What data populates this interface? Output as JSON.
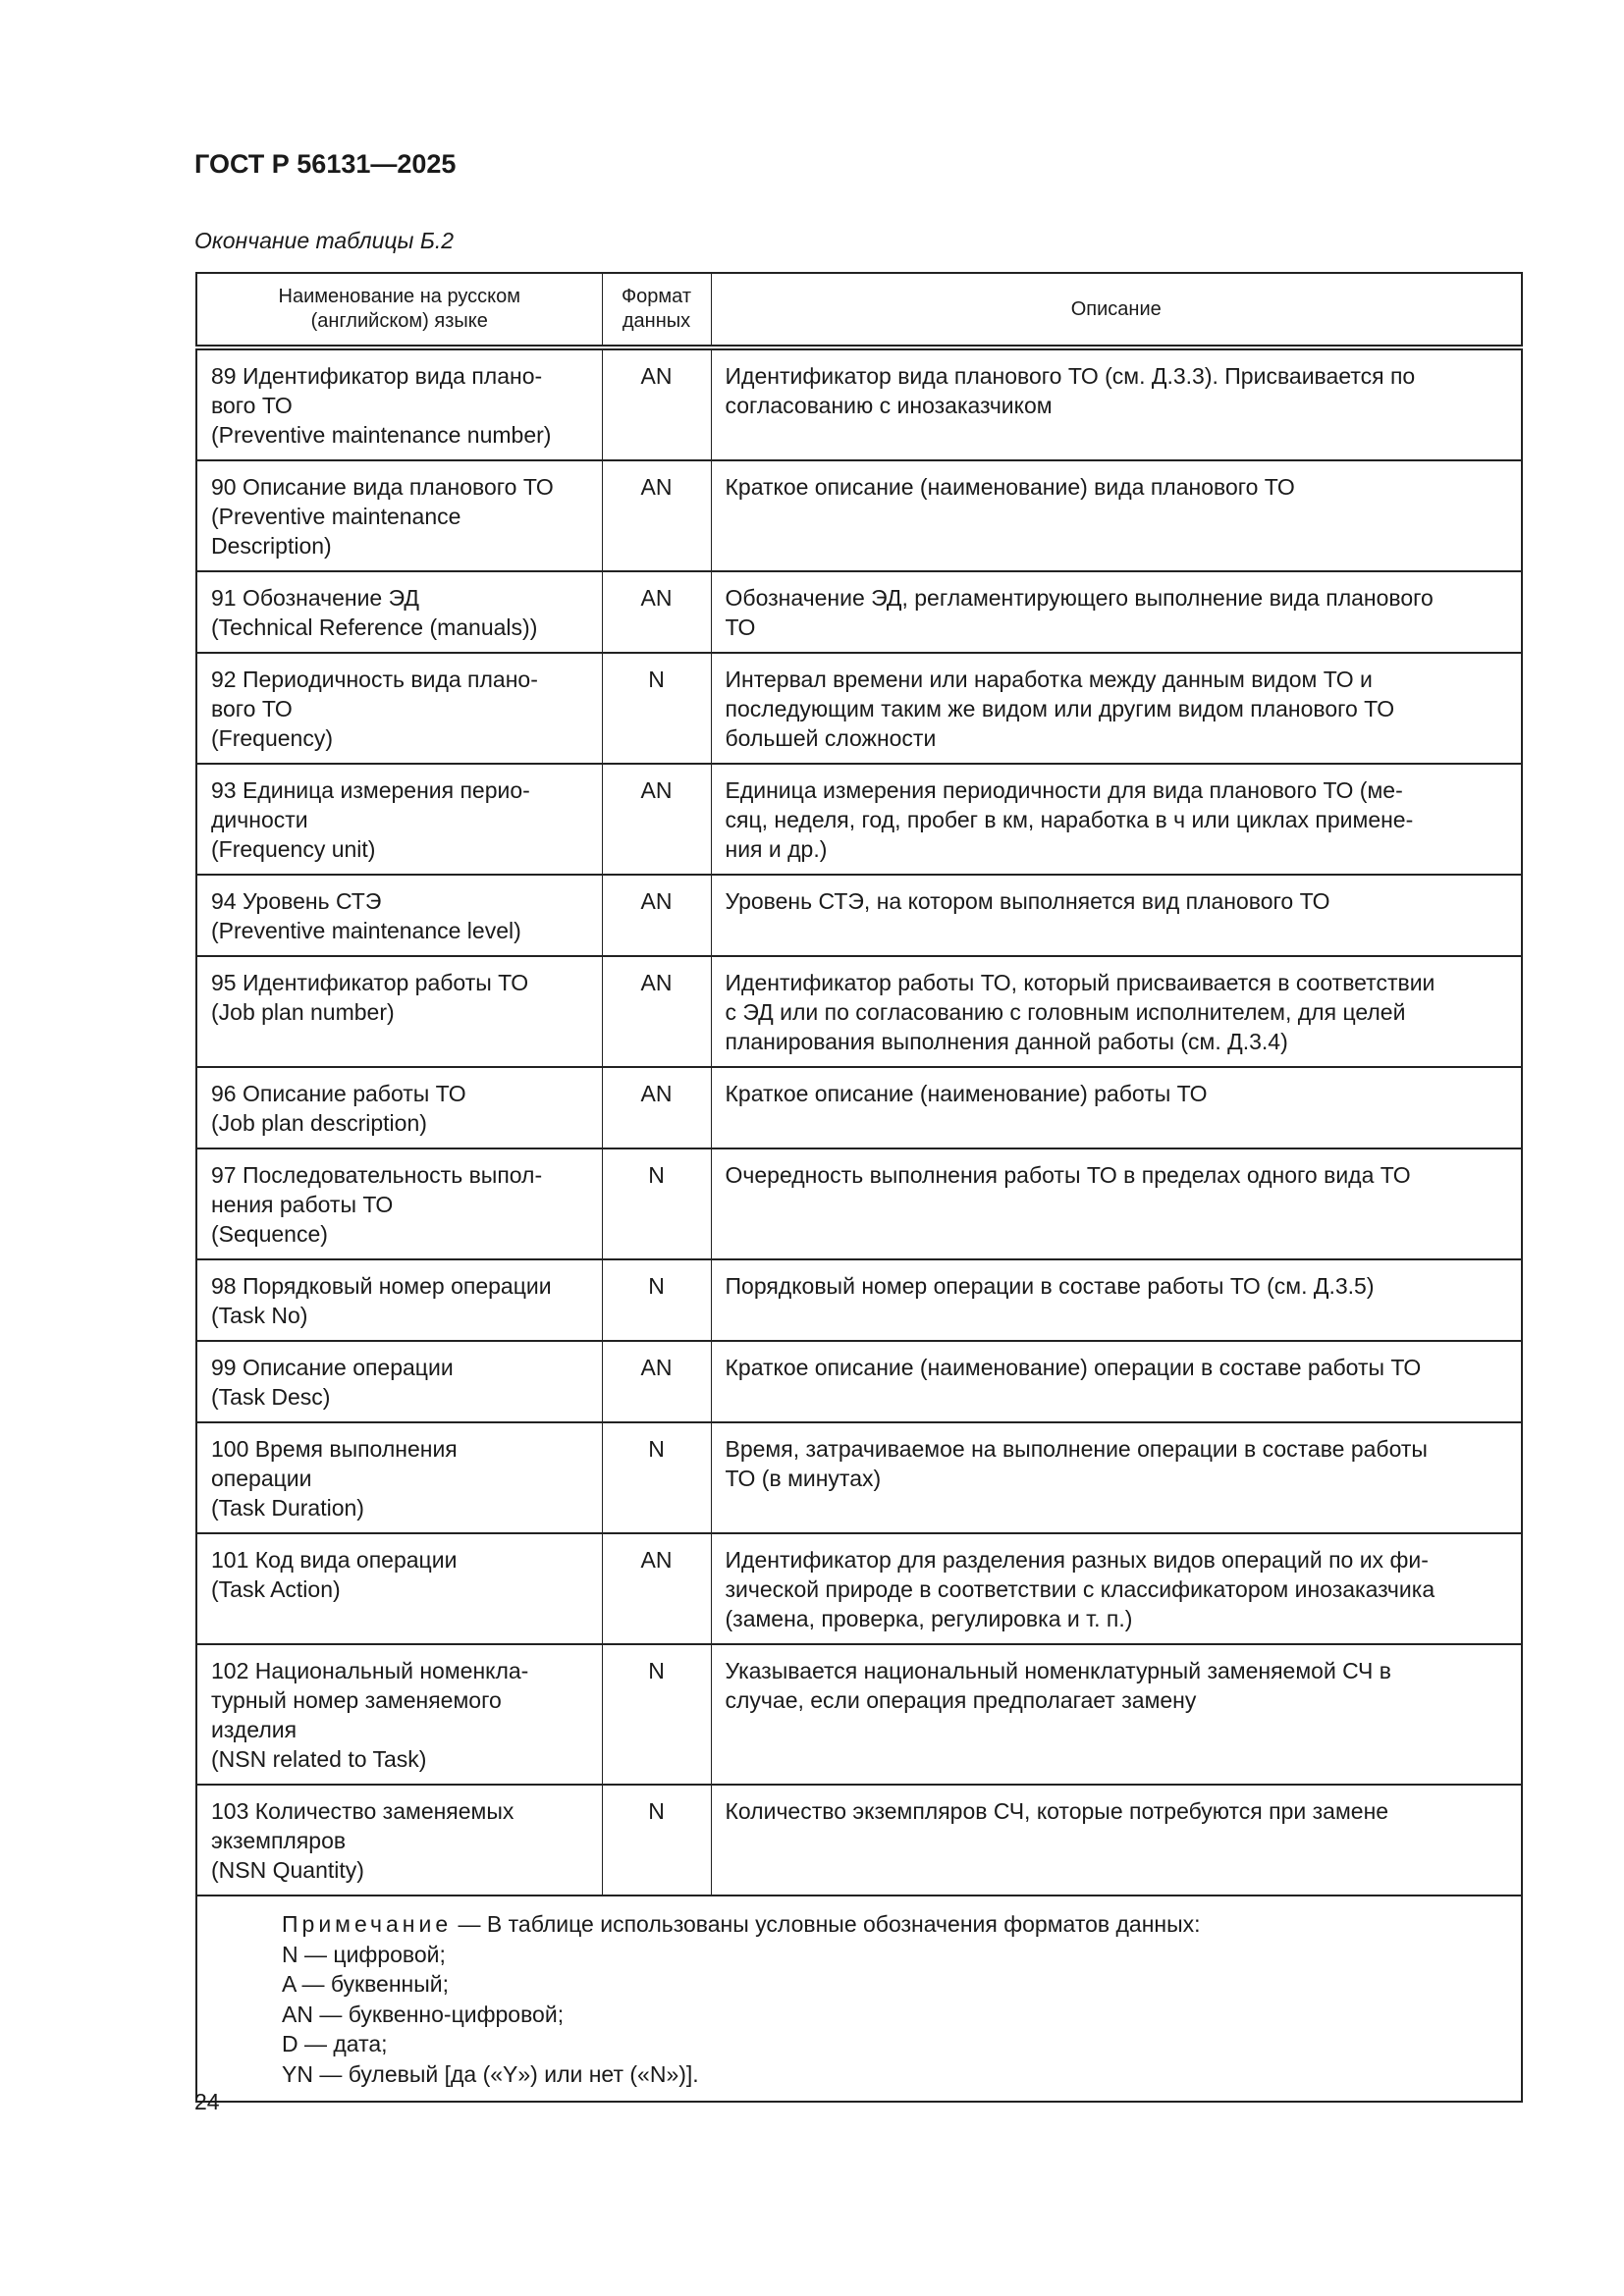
{
  "header": {
    "doc_id": "ГОСТ Р 56131—2025"
  },
  "table_caption": "Окончание таблицы Б.2",
  "columns": [
    "Наименование на русском\n(английском) языке",
    "Формат\nданных",
    "Описание"
  ],
  "rows": [
    {
      "name": "89 Идентификатор вида плано-\nвого ТО\n(Preventive maintenance number)",
      "format": "AN",
      "desc": "Идентификатор вида планового ТО (см. Д.3.3). Присваивается по\nсогласованию с инозаказчиком"
    },
    {
      "name": "90 Описание вида планового ТО\n(Preventive maintenance\nDescription)",
      "format": "AN",
      "desc": "Краткое описание (наименование) вида планового ТО"
    },
    {
      "name": "91 Обозначение ЭД\n(Technical Reference (manuals))",
      "format": "AN",
      "desc": "Обозначение ЭД, регламентирующего выполнение вида планового\nТО"
    },
    {
      "name": "92 Периодичность вида плано-\nвого ТО\n(Frequency)",
      "format": "N",
      "desc": "Интервал времени или наработка между данным видом ТО и\nпоследующим таким же видом или другим видом планового ТО\nбольшей сложности"
    },
    {
      "name": "93 Единица измерения перио-\nдичности\n(Frequency unit)",
      "format": "AN",
      "desc": "Единица измерения периодичности для вида планового ТО (ме-\nсяц, неделя, год, пробег в км, наработка в ч или циклах примене-\nния и др.)"
    },
    {
      "name": "94 Уровень СТЭ\n(Preventive maintenance level)",
      "format": "AN",
      "desc": "Уровень СТЭ, на котором выполняется вид планового ТО"
    },
    {
      "name": "95 Идентификатор работы ТО\n(Job plan number)",
      "format": "AN",
      "desc": "Идентификатор работы ТО, который присваивается в соответствии\nс ЭД или по согласованию с головным исполнителем, для целей\nпланирования выполнения данной работы (см. Д.3.4)"
    },
    {
      "name": "96 Описание работы ТО\n(Job plan description)",
      "format": "AN",
      "desc": "Краткое описание (наименование) работы ТО"
    },
    {
      "name": "97 Последовательность выпол-\nнения работы ТО\n(Sequence)",
      "format": "N",
      "desc": "Очередность выполнения работы ТО в пределах одного вида ТО"
    },
    {
      "name": "98 Порядковый номер операции\n(Task No)",
      "format": "N",
      "desc": "Порядковый номер операции в составе работы ТО (см. Д.3.5)"
    },
    {
      "name": "99 Описание операции\n(Task Desc)",
      "format": "AN",
      "desc": "Краткое описание (наименование) операции в составе работы ТО"
    },
    {
      "name": "100 Время выполнения\nоперации\n(Task Duration)",
      "format": "N",
      "desc": "Время, затрачиваемое на выполнение операции в составе работы\nТО (в минутах)"
    },
    {
      "name": "101 Код вида операции\n(Task Action)",
      "format": "AN",
      "desc": "Идентификатор для разделения разных видов операций по их фи-\nзической природе в соответствии с классификатором инозаказчика\n(замена, проверка, регулировка и т. п.)"
    },
    {
      "name": "102 Национальный номенкла-\nтурный номер заменяемого\nизделия\n(NSN related to Task)",
      "format": "N",
      "desc": "Указывается национальный номенклатурный заменяемой СЧ в\nслучае, если операция предполагает замену"
    },
    {
      "name": "103 Количество заменяемых\nэкземпляров\n(NSN Quantity)",
      "format": "N",
      "desc": "Количество экземпляров СЧ, которые потребуются при замене"
    }
  ],
  "note": {
    "label": "Примечание",
    "intro": " — В таблице использованы условные обозначения форматов данных:",
    "items": [
      "N — цифровой;",
      "A — буквенный;",
      "AN — буквенно-цифровой;",
      "D — дата;",
      "YN — булевый [да («Y») или нет («N»)]."
    ]
  },
  "page_number": "24"
}
